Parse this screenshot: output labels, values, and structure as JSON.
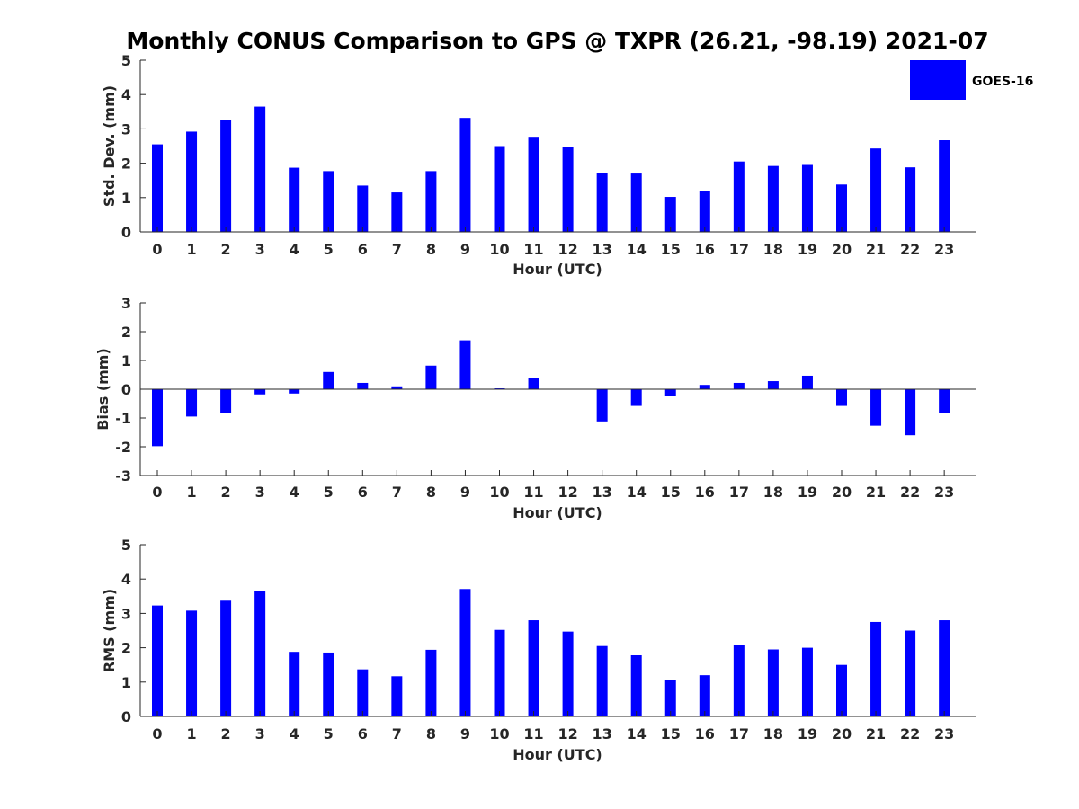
{
  "chart_data": {
    "title": "Monthly CONUS Comparison to GPS @ TXPR (26.21, -98.19) 2021-07",
    "series_color": "#0000ff",
    "legend": {
      "label": "GOES-16",
      "placement": "top-right"
    },
    "categories": [
      "0",
      "1",
      "2",
      "3",
      "4",
      "5",
      "6",
      "7",
      "8",
      "9",
      "10",
      "11",
      "12",
      "13",
      "14",
      "15",
      "16",
      "17",
      "18",
      "19",
      "20",
      "21",
      "22",
      "23"
    ],
    "panels": [
      {
        "type": "bar",
        "ylabel": "Std. Dev. (mm)",
        "xlabel": "Hour (UTC)",
        "ylim": [
          0,
          5
        ],
        "yticks": [
          "0",
          "1",
          "2",
          "3",
          "4",
          "5"
        ],
        "series": [
          {
            "name": "GOES-16",
            "values": [
              2.55,
              2.92,
              3.27,
              3.65,
              1.87,
              1.77,
              1.35,
              1.15,
              1.77,
              3.32,
              2.5,
              2.77,
              2.48,
              1.72,
              1.7,
              1.02,
              1.2,
              2.05,
              1.92,
              1.95,
              1.38,
              2.43,
              1.88,
              2.67
            ]
          }
        ]
      },
      {
        "type": "bar",
        "ylabel": "Bias (mm)",
        "xlabel": "Hour (UTC)",
        "ylim": [
          -3,
          3
        ],
        "yticks": [
          "-3",
          "-2",
          "-1",
          "0",
          "1",
          "2",
          "3"
        ],
        "series": [
          {
            "name": "GOES-16",
            "values": [
              -1.98,
              -0.95,
              -0.83,
              -0.18,
              -0.15,
              0.6,
              0.22,
              0.1,
              0.82,
              1.7,
              0.03,
              0.4,
              0.0,
              -1.12,
              -0.58,
              -0.23,
              0.15,
              0.22,
              0.28,
              0.47,
              -0.58,
              -1.27,
              -1.6,
              -0.83
            ]
          }
        ]
      },
      {
        "type": "bar",
        "ylabel": "RMS (mm)",
        "xlabel": "Hour (UTC)",
        "ylim": [
          0,
          5
        ],
        "yticks": [
          "0",
          "1",
          "2",
          "3",
          "4",
          "5"
        ],
        "series": [
          {
            "name": "GOES-16",
            "values": [
              3.23,
              3.08,
              3.37,
              3.65,
              1.88,
              1.86,
              1.37,
              1.17,
              1.94,
              3.71,
              2.52,
              2.8,
              2.47,
              2.05,
              1.78,
              1.05,
              1.2,
              2.08,
              1.95,
              2.0,
              1.5,
              2.75,
              2.5,
              2.8
            ]
          }
        ]
      }
    ]
  }
}
